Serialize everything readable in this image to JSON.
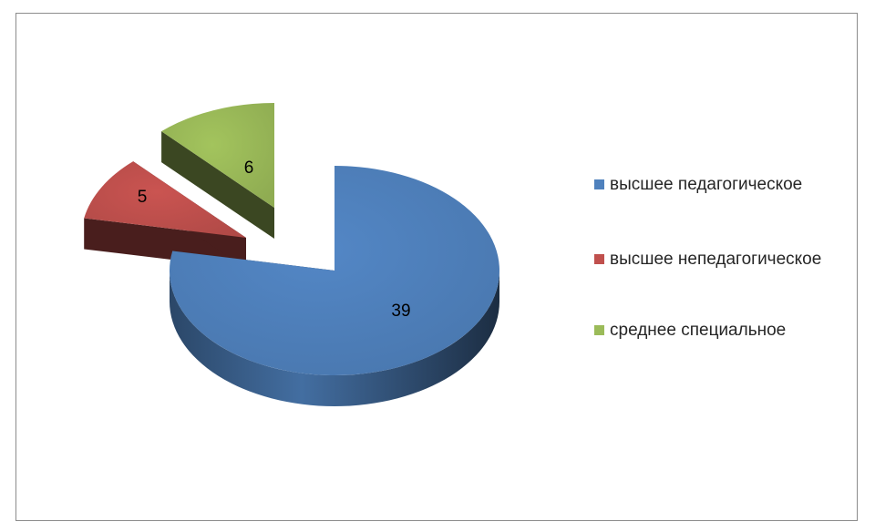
{
  "chart_data": {
    "type": "pie",
    "style": "3d-exploded",
    "categories": [
      "высшее педагогическое",
      "высшее непедагогическое",
      "среднее специальное"
    ],
    "values": [
      39,
      5,
      6
    ],
    "data_labels": [
      "39",
      "5",
      "6"
    ],
    "colors": [
      "#4f81bd",
      "#c0504d",
      "#9bbb59"
    ],
    "legend": {
      "position": "right"
    }
  }
}
